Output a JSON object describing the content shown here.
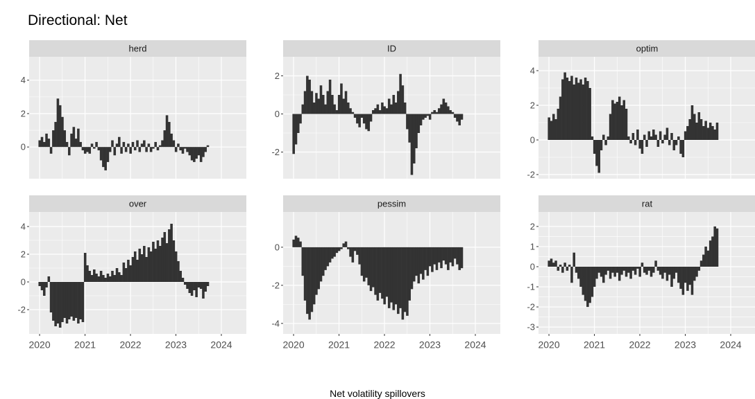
{
  "chart_data": {
    "type": "bar",
    "title": "Directional: Net",
    "xlabel": "Net volatility spillovers",
    "color": "#333333",
    "grid": true,
    "xlim": [
      2019.77,
      2024.55
    ],
    "xticks": [
      2020,
      2021,
      2022,
      2023,
      2024
    ],
    "x": [
      2020,
      2020.05,
      2020.1,
      2020.15,
      2020.2,
      2020.25,
      2020.3,
      2020.35,
      2020.4,
      2020.45,
      2020.5,
      2020.55,
      2020.6,
      2020.65,
      2020.7,
      2020.75,
      2020.8,
      2020.85,
      2020.9,
      2020.95,
      2021,
      2021.05,
      2021.1,
      2021.15,
      2021.2,
      2021.25,
      2021.3,
      2021.35,
      2021.4,
      2021.45,
      2021.5,
      2021.55,
      2021.6,
      2021.65,
      2021.7,
      2021.75,
      2021.8,
      2021.85,
      2021.9,
      2021.95,
      2022,
      2022.05,
      2022.1,
      2022.15,
      2022.2,
      2022.25,
      2022.3,
      2022.35,
      2022.4,
      2022.45,
      2022.5,
      2022.55,
      2022.6,
      2022.65,
      2022.7,
      2022.75,
      2022.8,
      2022.85,
      2022.9,
      2022.95,
      2023,
      2023.05,
      2023.1,
      2023.15,
      2023.2,
      2023.25,
      2023.3,
      2023.35,
      2023.4,
      2023.45,
      2023.5,
      2023.55,
      2023.6,
      2023.65,
      2023.7
    ],
    "panels": [
      {
        "name": "herd",
        "ylim": [
          -1.9,
          5.4
        ],
        "yticks": [
          0,
          2,
          4
        ],
        "values": [
          0.4,
          0.6,
          0.3,
          0.8,
          0.5,
          -0.4,
          1.0,
          1.5,
          2.9,
          2.5,
          1.8,
          1.0,
          0.3,
          -0.5,
          0.8,
          1.2,
          0.5,
          1.1,
          0.3,
          -0.2,
          -0.4,
          -0.3,
          -0.4,
          0.2,
          -0.1,
          0.3,
          -0.2,
          -0.8,
          -1.2,
          -1.4,
          -0.9,
          -0.3,
          0.4,
          -0.5,
          0.2,
          0.6,
          -0.4,
          0.3,
          -0.3,
          0.2,
          -0.4,
          0.3,
          -0.2,
          0.4,
          -0.3,
          0.2,
          0.4,
          -0.3,
          0.2,
          -0.3,
          -0.1,
          0.3,
          -0.2,
          0.1,
          0.4,
          1.0,
          1.9,
          1.5,
          0.8,
          0.4,
          -0.3,
          0.2,
          -0.2,
          -0.4,
          -0.1,
          -0.3,
          -0.5,
          -0.8,
          -0.9,
          -0.7,
          -0.5,
          -0.9,
          -0.6,
          -0.3,
          0.1
        ]
      },
      {
        "name": "ID",
        "ylim": [
          -3.4,
          3.0
        ],
        "yticks": [
          -2,
          0,
          2
        ],
        "values": [
          -2.1,
          -1.6,
          -1.0,
          -0.5,
          0.5,
          1.2,
          2.0,
          1.8,
          1.2,
          0.6,
          1.1,
          0.8,
          1.5,
          1.0,
          0.5,
          1.2,
          1.8,
          1.0,
          0.5,
          0.2,
          1.0,
          1.6,
          0.8,
          1.2,
          0.6,
          0.3,
          0.1,
          -0.2,
          -0.5,
          -0.7,
          -0.2,
          -0.5,
          -0.8,
          -0.9,
          -0.4,
          0.2,
          0.3,
          0.5,
          0.2,
          0.6,
          0.4,
          0.3,
          0.8,
          0.5,
          1.0,
          0.6,
          1.2,
          2.1,
          1.5,
          0.6,
          -0.8,
          -1.5,
          -3.2,
          -2.6,
          -1.8,
          -1.0,
          -0.6,
          -0.3,
          -0.2,
          -0.1,
          -0.3,
          0.1,
          0.2,
          0.1,
          0.3,
          0.5,
          0.8,
          0.6,
          0.4,
          0.2,
          0.1,
          -0.2,
          -0.4,
          -0.6,
          -0.3
        ]
      },
      {
        "name": "optim",
        "ylim": [
          -2.24,
          4.8
        ],
        "yticks": [
          -2,
          0,
          2,
          4
        ],
        "values": [
          1.3,
          1.1,
          1.5,
          1.2,
          1.8,
          2.5,
          3.5,
          3.9,
          3.6,
          3.4,
          3.7,
          3.2,
          3.6,
          3.3,
          3.5,
          3.2,
          3.6,
          3.4,
          3.0,
          0.2,
          -0.8,
          -1.5,
          -1.9,
          -0.6,
          0.3,
          -0.3,
          0.2,
          1.5,
          2.3,
          2.1,
          2.2,
          2.5,
          2.0,
          2.3,
          1.8,
          0.2,
          -0.2,
          0.4,
          -0.3,
          0.6,
          -0.5,
          -0.8,
          0.3,
          -0.4,
          0.5,
          0.2,
          0.6,
          0.3,
          -0.4,
          0.5,
          -0.2,
          0.3,
          0.7,
          -0.3,
          0.4,
          -0.6,
          -0.3,
          0.2,
          -0.8,
          -1.0,
          0.5,
          0.8,
          1.2,
          2.0,
          1.5,
          1.0,
          1.6,
          1.2,
          0.8,
          1.1,
          0.7,
          1.0,
          0.8,
          0.6,
          1.0
        ]
      },
      {
        "name": "over",
        "ylim": [
          -3.75,
          5.05
        ],
        "yticks": [
          -2,
          0,
          2,
          4
        ],
        "values": [
          -0.3,
          -0.6,
          -1.0,
          -0.4,
          0.4,
          -2.2,
          -2.8,
          -3.2,
          -3.0,
          -3.3,
          -2.9,
          -2.6,
          -3.0,
          -2.7,
          -2.5,
          -2.8,
          -2.6,
          -3.0,
          -2.7,
          -2.9,
          2.1,
          1.2,
          0.8,
          0.5,
          0.9,
          0.6,
          0.4,
          0.8,
          0.5,
          0.3,
          0.6,
          0.4,
          0.8,
          0.5,
          1.0,
          0.7,
          0.5,
          1.4,
          1.0,
          1.6,
          1.2,
          1.8,
          2.2,
          1.6,
          2.4,
          2.0,
          2.6,
          1.8,
          2.5,
          2.2,
          2.9,
          2.4,
          3.0,
          2.6,
          3.2,
          3.6,
          2.8,
          3.8,
          4.2,
          3.0,
          2.2,
          1.5,
          0.8,
          0.3,
          -0.2,
          -0.5,
          -0.8,
          -1.0,
          -0.6,
          -1.1,
          -0.4,
          -0.5,
          -1.2,
          -0.7,
          -0.3
        ]
      },
      {
        "name": "pessim",
        "ylim": [
          -4.55,
          1.85
        ],
        "yticks": [
          -4,
          -2,
          0
        ],
        "values": [
          0.4,
          0.6,
          0.5,
          0.3,
          -1.5,
          -2.8,
          -3.5,
          -3.8,
          -3.4,
          -3.0,
          -2.5,
          -2.2,
          -1.8,
          -1.5,
          -1.2,
          -1.0,
          -0.8,
          -0.6,
          -0.5,
          -0.3,
          -0.2,
          -0.1,
          0.2,
          0.3,
          -0.1,
          -0.5,
          -0.8,
          -0.2,
          -0.4,
          -0.9,
          -1.5,
          -1.8,
          -1.6,
          -2.0,
          -2.3,
          -2.1,
          -2.5,
          -2.8,
          -2.4,
          -2.7,
          -3.0,
          -2.6,
          -3.2,
          -2.9,
          -3.3,
          -3.0,
          -3.5,
          -3.2,
          -3.8,
          -3.4,
          -3.6,
          -2.8,
          -2.2,
          -1.8,
          -1.5,
          -1.9,
          -1.4,
          -1.7,
          -1.2,
          -1.5,
          -1.0,
          -1.3,
          -0.9,
          -1.2,
          -0.8,
          -1.1,
          -0.7,
          -0.9,
          -1.2,
          -0.8,
          -1.0,
          -0.6,
          -0.9,
          -1.2,
          -1.1
        ]
      },
      {
        "name": "rat",
        "ylim": [
          -3.34,
          2.72
        ],
        "yticks": [
          -3,
          -2,
          -1,
          0,
          1,
          2
        ],
        "values": [
          0.3,
          0.4,
          0.2,
          0.3,
          -0.2,
          0.1,
          -0.3,
          0.2,
          -0.2,
          0.1,
          -0.8,
          0.7,
          -0.3,
          -0.6,
          -1.0,
          -1.4,
          -1.7,
          -2.0,
          -1.8,
          -1.5,
          -1.0,
          -0.6,
          -0.3,
          -0.5,
          -0.8,
          -0.4,
          -0.2,
          -0.6,
          -0.3,
          -0.5,
          -0.3,
          -0.7,
          -0.4,
          -0.2,
          -0.5,
          -0.3,
          -0.6,
          -0.2,
          -0.4,
          -0.1,
          -0.5,
          0.2,
          -0.3,
          -0.4,
          -0.2,
          -0.5,
          -0.3,
          0.3,
          -0.2,
          -0.4,
          -0.6,
          -0.3,
          -0.7,
          -0.4,
          -1.0,
          -0.6,
          -0.3,
          -0.8,
          -1.1,
          -1.4,
          -0.8,
          -1.2,
          -0.9,
          -1.4,
          -0.7,
          -0.5,
          -0.2,
          0.3,
          0.6,
          1.0,
          0.8,
          1.3,
          1.5,
          2.0,
          1.9
        ]
      }
    ]
  }
}
